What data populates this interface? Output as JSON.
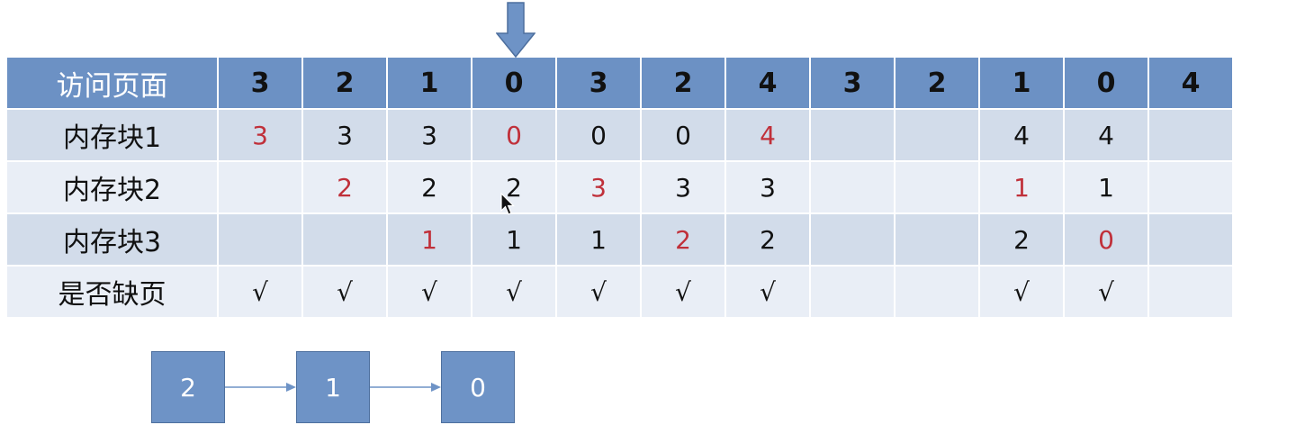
{
  "colors": {
    "header_bg": "#6c91c4",
    "row_dark": "#d2dcea",
    "row_light": "#e9eef6",
    "new_value": "#c0303a",
    "node_bg": "#6e93c6"
  },
  "table": {
    "rows": [
      {
        "label": "访问页面",
        "cells": [
          {
            "v": "3"
          },
          {
            "v": "2"
          },
          {
            "v": "1"
          },
          {
            "v": "0"
          },
          {
            "v": "3"
          },
          {
            "v": "2"
          },
          {
            "v": "4"
          },
          {
            "v": "3"
          },
          {
            "v": "2"
          },
          {
            "v": "1"
          },
          {
            "v": "0"
          },
          {
            "v": "4"
          }
        ]
      },
      {
        "label": "内存块1",
        "cells": [
          {
            "v": "3",
            "new": true
          },
          {
            "v": "3"
          },
          {
            "v": "3"
          },
          {
            "v": "0",
            "new": true
          },
          {
            "v": "0"
          },
          {
            "v": "0"
          },
          {
            "v": "4",
            "new": true
          },
          {
            "v": ""
          },
          {
            "v": ""
          },
          {
            "v": "4"
          },
          {
            "v": "4"
          },
          {
            "v": ""
          }
        ]
      },
      {
        "label": "内存块2",
        "cells": [
          {
            "v": ""
          },
          {
            "v": "2",
            "new": true
          },
          {
            "v": "2"
          },
          {
            "v": "2"
          },
          {
            "v": "3",
            "new": true
          },
          {
            "v": "3"
          },
          {
            "v": "3"
          },
          {
            "v": ""
          },
          {
            "v": ""
          },
          {
            "v": "1",
            "new": true
          },
          {
            "v": "1"
          },
          {
            "v": ""
          }
        ]
      },
      {
        "label": "内存块3",
        "cells": [
          {
            "v": ""
          },
          {
            "v": ""
          },
          {
            "v": "1",
            "new": true
          },
          {
            "v": "1"
          },
          {
            "v": "1"
          },
          {
            "v": "2",
            "new": true
          },
          {
            "v": "2"
          },
          {
            "v": ""
          },
          {
            "v": ""
          },
          {
            "v": "2"
          },
          {
            "v": "0",
            "new": true
          },
          {
            "v": ""
          }
        ]
      },
      {
        "label": "是否缺页",
        "cells": [
          {
            "v": "√"
          },
          {
            "v": "√"
          },
          {
            "v": "√"
          },
          {
            "v": "√"
          },
          {
            "v": "√"
          },
          {
            "v": "√"
          },
          {
            "v": "√"
          },
          {
            "v": ""
          },
          {
            "v": ""
          },
          {
            "v": "√"
          },
          {
            "v": "√"
          },
          {
            "v": ""
          }
        ]
      }
    ]
  },
  "queue": {
    "nodes": [
      "2",
      "1",
      "0"
    ]
  },
  "icons": {
    "pointer": "down-arrow-icon",
    "cursor": "mouse-cursor-icon"
  }
}
